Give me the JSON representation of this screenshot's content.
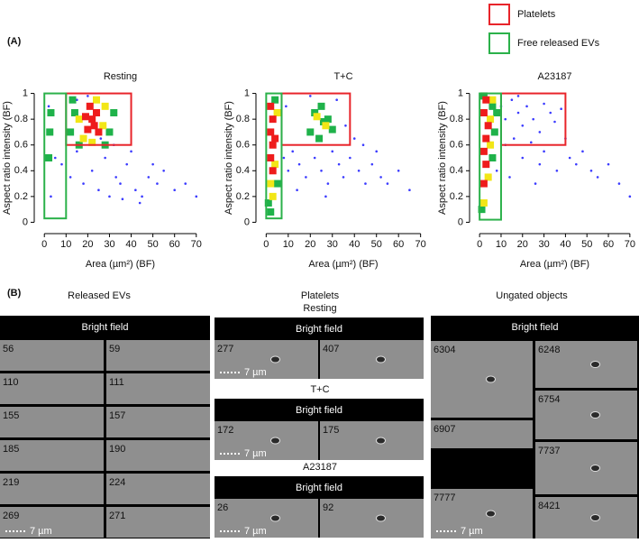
{
  "panel_labels": [
    "(A)",
    "(B)"
  ],
  "legend": [
    {
      "label": "Platelets",
      "color": "#e8242a"
    },
    {
      "label": "Free released EVs",
      "color": "#2bb14a"
    }
  ],
  "chart_data": [
    {
      "type": "scatter",
      "title": "Resting",
      "x_label": "Area (µm²) (BF)",
      "y_label": "Aspect ratio intensity (BF)",
      "xlim": [
        -3,
        73
      ],
      "ylim": [
        -0.06,
        1.06
      ],
      "xticks": [
        0,
        10,
        20,
        30,
        40,
        50,
        60,
        70
      ],
      "yticks": [
        0,
        0.2,
        0.4,
        0.6,
        0.8,
        1
      ],
      "series": [
        {
          "color": "#3b3bff",
          "x": [
            2,
            3,
            5,
            8,
            12,
            15,
            18,
            22,
            25,
            28,
            30,
            33,
            35,
            38,
            42,
            45,
            48,
            52,
            55,
            60,
            65,
            70,
            26,
            32,
            40,
            15,
            20,
            44,
            36,
            50
          ],
          "y": [
            0.9,
            0.2,
            0.5,
            0.45,
            0.35,
            0.55,
            0.3,
            0.4,
            0.25,
            0.5,
            0.2,
            0.35,
            0.3,
            0.45,
            0.25,
            0.2,
            0.35,
            0.3,
            0.4,
            0.25,
            0.3,
            0.2,
            0.65,
            0.6,
            0.55,
            0.95,
            0.98,
            0.15,
            0.18,
            0.45
          ]
        },
        {
          "color": "#1fb24a",
          "x": [
            12,
            14,
            16,
            30,
            32,
            28,
            13,
            2,
            2.5,
            3
          ],
          "y": [
            0.7,
            0.85,
            0.6,
            0.7,
            0.85,
            0.6,
            0.95,
            0.5,
            0.7,
            0.85
          ]
        },
        {
          "color": "#f2e616",
          "x": [
            16,
            18,
            27,
            28,
            22,
            24
          ],
          "y": [
            0.8,
            0.65,
            0.75,
            0.9,
            0.62,
            0.95
          ]
        },
        {
          "color": "#ee1c1c",
          "x": [
            20,
            22,
            24,
            21,
            25,
            19,
            23
          ],
          "y": [
            0.72,
            0.8,
            0.85,
            0.9,
            0.7,
            0.82,
            0.75
          ]
        }
      ],
      "gates": [
        {
          "legend": 0,
          "x": [
            10,
            40
          ],
          "y": [
            0.6,
            1
          ]
        },
        {
          "legend": 1,
          "x": [
            0,
            10
          ],
          "y": [
            0.03,
            1
          ]
        }
      ]
    },
    {
      "type": "scatter",
      "title": "T+C",
      "x_label": "Area (µm²) (BF)",
      "y_label": "Aspect ratio intensity (BF)",
      "xlim": [
        -3,
        73
      ],
      "ylim": [
        -0.06,
        1.06
      ],
      "xticks": [
        0,
        10,
        20,
        30,
        40,
        50,
        60,
        70
      ],
      "yticks": [
        0,
        0.2,
        0.4,
        0.6,
        0.8,
        1
      ],
      "series": [
        {
          "color": "#3b3bff",
          "x": [
            8,
            10,
            12,
            15,
            18,
            22,
            25,
            28,
            30,
            33,
            35,
            38,
            42,
            45,
            48,
            52,
            55,
            60,
            65,
            40,
            20,
            14,
            27,
            36,
            50,
            9,
            44,
            32
          ],
          "y": [
            0.5,
            0.4,
            0.55,
            0.45,
            0.35,
            0.5,
            0.4,
            0.3,
            0.55,
            0.45,
            0.35,
            0.5,
            0.4,
            0.3,
            0.45,
            0.35,
            0.3,
            0.4,
            0.25,
            0.65,
            0.98,
            0.25,
            0.2,
            0.75,
            0.55,
            0.9,
            0.6,
            0.95
          ]
        },
        {
          "color": "#1fb24a",
          "x": [
            20,
            22,
            25,
            28,
            30,
            24,
            26,
            1,
            4,
            2,
            5
          ],
          "y": [
            0.7,
            0.85,
            0.9,
            0.8,
            0.72,
            0.65,
            0.78,
            0.15,
            0.95,
            0.08,
            0.3
          ]
        },
        {
          "color": "#f2e616",
          "x": [
            23,
            27,
            2,
            4,
            3,
            5
          ],
          "y": [
            0.82,
            0.75,
            0.3,
            0.45,
            0.2,
            0.85
          ]
        },
        {
          "color": "#ee1c1c",
          "x": [
            2,
            3,
            2,
            3,
            4,
            2,
            3
          ],
          "y": [
            0.5,
            0.6,
            0.7,
            0.8,
            0.65,
            0.9,
            0.4
          ]
        }
      ],
      "gates": [
        {
          "legend": 0,
          "x": [
            7,
            38
          ],
          "y": [
            0.6,
            1
          ]
        },
        {
          "legend": 1,
          "x": [
            0,
            7
          ],
          "y": [
            0.03,
            1
          ]
        }
      ]
    },
    {
      "type": "scatter",
      "title": "A23187",
      "x_label": "Area (µm²) (BF)",
      "y_label": "Aspect ratio intensity (BF)",
      "xlim": [
        -3,
        73
      ],
      "ylim": [
        -0.06,
        1.06
      ],
      "xticks": [
        0,
        10,
        20,
        30,
        40,
        50,
        60,
        70
      ],
      "yticks": [
        0,
        0.2,
        0.4,
        0.6,
        0.8,
        1
      ],
      "series": [
        {
          "color": "#3b3bff",
          "x": [
            10,
            12,
            15,
            18,
            20,
            22,
            25,
            28,
            30,
            33,
            35,
            38,
            12,
            16,
            24,
            30,
            42,
            45,
            48,
            52,
            55,
            60,
            65,
            70,
            20,
            28,
            36,
            14,
            26,
            40,
            8,
            18
          ],
          "y": [
            0.9,
            0.8,
            0.95,
            0.85,
            0.75,
            0.9,
            0.8,
            0.7,
            0.92,
            0.85,
            0.78,
            0.88,
            0.6,
            0.65,
            0.62,
            0.55,
            0.5,
            0.45,
            0.55,
            0.4,
            0.35,
            0.45,
            0.3,
            0.2,
            0.5,
            0.45,
            0.4,
            0.35,
            0.3,
            0.65,
            0.4,
            0.98
          ]
        },
        {
          "color": "#1fb24a",
          "x": [
            1,
            6,
            7,
            2,
            6,
            8
          ],
          "y": [
            0.1,
            0.9,
            0.7,
            0.98,
            0.5,
            0.85
          ]
        },
        {
          "color": "#f2e616",
          "x": [
            5,
            5,
            4,
            2,
            6
          ],
          "y": [
            0.8,
            0.6,
            0.35,
            0.15,
            0.95
          ]
        },
        {
          "color": "#ee1c1c",
          "x": [
            2,
            3,
            2,
            3,
            4,
            2,
            3
          ],
          "y": [
            0.3,
            0.45,
            0.55,
            0.65,
            0.75,
            0.85,
            0.95
          ]
        }
      ],
      "gates": [
        {
          "legend": 0,
          "x": [
            10,
            40
          ],
          "y": [
            0.6,
            1
          ]
        },
        {
          "legend": 1,
          "x": [
            0,
            10
          ],
          "y": [
            0.02,
            1
          ]
        }
      ]
    }
  ],
  "images": {
    "scale_bar": "7 µm",
    "columns": [
      {
        "title": "Released EVs",
        "groups": [
          {
            "header": "Bright field",
            "cells": [
              56,
              59,
              110,
              111,
              155,
              157,
              185,
              190,
              219,
              224,
              269,
              271
            ]
          }
        ]
      },
      {
        "title": "Platelets",
        "groups": [
          {
            "title": "Resting",
            "header": "Bright field",
            "cells": [
              277,
              407
            ]
          },
          {
            "title": "T+C",
            "header": "Bright field",
            "cells": [
              172,
              175
            ]
          },
          {
            "title": "A23187",
            "header": "Bright field",
            "cells": [
              26,
              92
            ]
          }
        ]
      },
      {
        "title": "Ungated objects",
        "groups": [
          {
            "header": "Bright field",
            "cells": [
              6304,
              6907,
              7777,
              6248,
              6754,
              7737,
              8421
            ]
          }
        ]
      }
    ]
  }
}
